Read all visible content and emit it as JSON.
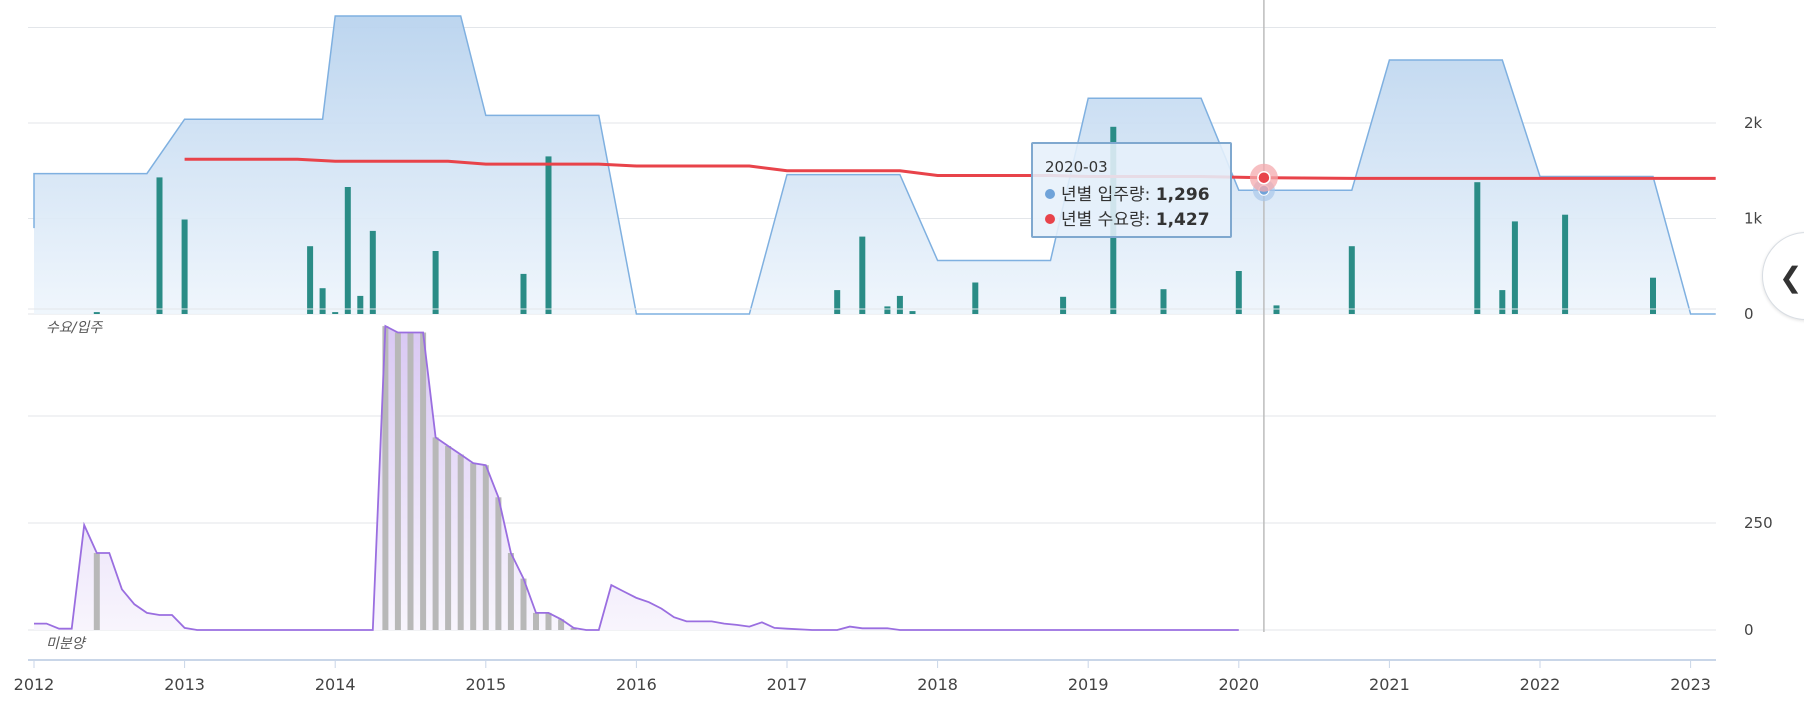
{
  "chart_data": {
    "type": "combo",
    "x_axis": {
      "type": "date",
      "range": [
        "2012-01",
        "2023-03"
      ],
      "tick_labels": [
        "2012",
        "2013",
        "2014",
        "2015",
        "2016",
        "2017",
        "2018",
        "2019",
        "2020",
        "2021",
        "2022",
        "2023"
      ]
    },
    "top_panel": {
      "title": "수요/입주",
      "y_tick_labels": [
        "0",
        "1k",
        "2k"
      ],
      "ylim": [
        0,
        3100
      ],
      "grid": true,
      "series": [
        {
          "name": "년별 입주량",
          "type": "area",
          "color": "#7fb0e0",
          "points": [
            [
              "2012-01",
              900
            ],
            [
              "2012-01",
              1470
            ],
            [
              "2012-10",
              1470
            ],
            [
              "2013-01",
              2040
            ],
            [
              "2013-12",
              2040
            ],
            [
              "2014-01",
              3120
            ],
            [
              "2014-11",
              3120
            ],
            [
              "2015-01",
              2080
            ],
            [
              "2015-10",
              2080
            ],
            [
              "2016-01",
              0
            ],
            [
              "2016-10",
              0
            ],
            [
              "2017-01",
              1460
            ],
            [
              "2017-10",
              1460
            ],
            [
              "2018-01",
              560
            ],
            [
              "2018-10",
              560
            ],
            [
              "2019-01",
              2260
            ],
            [
              "2019-10",
              2260
            ],
            [
              "2020-01",
              1296
            ],
            [
              "2020-10",
              1296
            ],
            [
              "2021-01",
              2660
            ],
            [
              "2021-10",
              2660
            ],
            [
              "2022-01",
              1440
            ],
            [
              "2022-10",
              1440
            ],
            [
              "2023-01",
              0
            ],
            [
              "2023-03",
              0
            ]
          ]
        },
        {
          "name": "년별 수요량",
          "type": "line",
          "color": "#e8434a",
          "points": [
            [
              "2013-01",
              1620
            ],
            [
              "2013-10",
              1620
            ],
            [
              "2014-01",
              1600
            ],
            [
              "2014-10",
              1600
            ],
            [
              "2015-01",
              1570
            ],
            [
              "2015-10",
              1570
            ],
            [
              "2016-01",
              1550
            ],
            [
              "2016-10",
              1550
            ],
            [
              "2017-01",
              1500
            ],
            [
              "2017-10",
              1500
            ],
            [
              "2018-01",
              1450
            ],
            [
              "2018-10",
              1450
            ],
            [
              "2019-01",
              1440
            ],
            [
              "2019-10",
              1440
            ],
            [
              "2020-03",
              1427
            ],
            [
              "2020-10",
              1420
            ],
            [
              "2021-10",
              1420
            ],
            [
              "2022-10",
              1420
            ],
            [
              "2023-03",
              1420
            ]
          ]
        },
        {
          "name": "bars",
          "type": "bar",
          "color": "#2a8c86",
          "points": [
            [
              "2012-06",
              20
            ],
            [
              "2012-11",
              1430
            ],
            [
              "2013-01",
              990
            ],
            [
              "2013-11",
              710
            ],
            [
              "2013-12",
              270
            ],
            [
              "2014-01",
              20
            ],
            [
              "2014-02",
              1330
            ],
            [
              "2014-03",
              190
            ],
            [
              "2014-04",
              870
            ],
            [
              "2014-09",
              660
            ],
            [
              "2015-04",
              420
            ],
            [
              "2015-06",
              1650
            ],
            [
              "2017-05",
              250
            ],
            [
              "2017-07",
              810
            ],
            [
              "2017-09",
              80
            ],
            [
              "2017-10",
              190
            ],
            [
              "2017-11",
              30
            ],
            [
              "2018-04",
              330
            ],
            [
              "2018-11",
              180
            ],
            [
              "2019-03",
              1960
            ],
            [
              "2019-07",
              260
            ],
            [
              "2020-01",
              450
            ],
            [
              "2020-04",
              90
            ],
            [
              "2020-10",
              710
            ],
            [
              "2021-08",
              1380
            ],
            [
              "2021-10",
              250
            ],
            [
              "2021-11",
              970
            ],
            [
              "2022-03",
              1040
            ],
            [
              "2022-10",
              380
            ]
          ]
        }
      ]
    },
    "bottom_panel": {
      "title": "미분양",
      "y_tick_labels": [
        "0",
        "250"
      ],
      "ylim": [
        -10,
        760
      ],
      "grid": true,
      "series": [
        {
          "name": "line",
          "type": "area",
          "color": "#9a6ee0",
          "points": [
            [
              "2012-01",
              15
            ],
            [
              "2012-02",
              15
            ],
            [
              "2012-03",
              3
            ],
            [
              "2012-04",
              3
            ],
            [
              "2012-05",
              245
            ],
            [
              "2012-06",
              180
            ],
            [
              "2012-07",
              180
            ],
            [
              "2012-08",
              95
            ],
            [
              "2012-09",
              60
            ],
            [
              "2012-10",
              40
            ],
            [
              "2012-11",
              35
            ],
            [
              "2012-12",
              35
            ],
            [
              "2013-01",
              5
            ],
            [
              "2013-02",
              0
            ],
            [
              "2014-04",
              0
            ],
            [
              "2014-05",
              710
            ],
            [
              "2014-06",
              695
            ],
            [
              "2014-07",
              695
            ],
            [
              "2014-08",
              695
            ],
            [
              "2014-09",
              450
            ],
            [
              "2014-10",
              430
            ],
            [
              "2014-11",
              410
            ],
            [
              "2014-12",
              390
            ],
            [
              "2015-01",
              385
            ],
            [
              "2015-02",
              310
            ],
            [
              "2015-03",
              180
            ],
            [
              "2015-04",
              120
            ],
            [
              "2015-05",
              40
            ],
            [
              "2015-06",
              40
            ],
            [
              "2015-07",
              25
            ],
            [
              "2015-08",
              5
            ],
            [
              "2015-09",
              0
            ],
            [
              "2015-10",
              0
            ],
            [
              "2015-11",
              105
            ],
            [
              "2015-12",
              90
            ],
            [
              "2016-01",
              75
            ],
            [
              "2016-02",
              65
            ],
            [
              "2016-03",
              50
            ],
            [
              "2016-04",
              30
            ],
            [
              "2016-05",
              20
            ],
            [
              "2016-06",
              20
            ],
            [
              "2016-07",
              20
            ],
            [
              "2016-08",
              15
            ],
            [
              "2016-09",
              12
            ],
            [
              "2016-10",
              8
            ],
            [
              "2016-11",
              18
            ],
            [
              "2016-12",
              5
            ],
            [
              "2017-01",
              3
            ],
            [
              "2017-03",
              0
            ],
            [
              "2017-05",
              0
            ],
            [
              "2017-06",
              8
            ],
            [
              "2017-07",
              4
            ],
            [
              "2017-09",
              4
            ],
            [
              "2017-10",
              0
            ],
            [
              "2020-01",
              0
            ]
          ]
        },
        {
          "name": "bars",
          "type": "bar",
          "color": "#b8b8b8",
          "points": [
            [
              "2012-06",
              180
            ],
            [
              "2014-05",
              710
            ],
            [
              "2014-06",
              695
            ],
            [
              "2014-07",
              695
            ],
            [
              "2014-08",
              695
            ],
            [
              "2014-09",
              450
            ],
            [
              "2014-10",
              430
            ],
            [
              "2014-11",
              410
            ],
            [
              "2014-12",
              390
            ],
            [
              "2015-01",
              385
            ],
            [
              "2015-02",
              310
            ],
            [
              "2015-03",
              180
            ],
            [
              "2015-04",
              120
            ],
            [
              "2015-05",
              40
            ],
            [
              "2015-06",
              40
            ],
            [
              "2015-07",
              25
            ],
            [
              "2015-08",
              5
            ]
          ]
        }
      ]
    },
    "crosshair_date": "2020-03"
  },
  "tooltip": {
    "date": "2020-03",
    "rows": [
      {
        "label": "년별 입주량: ",
        "value": "1,296",
        "color": "#7fb0e0"
      },
      {
        "label": "년별 수요량: ",
        "value": "1,427",
        "color": "#e8434a"
      }
    ]
  },
  "collapse_icon": "chevron-left-icon"
}
